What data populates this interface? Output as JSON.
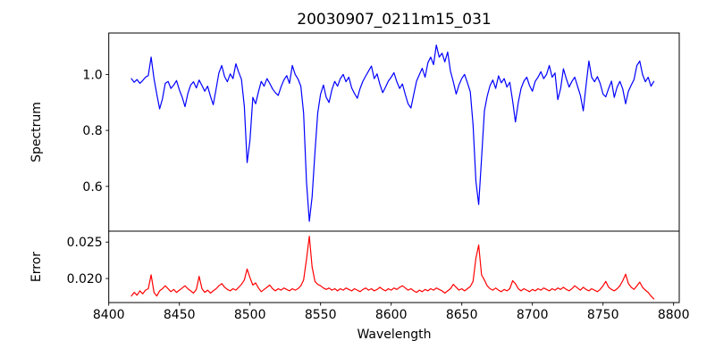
{
  "chart_data": {
    "type": "line",
    "title": "20030907_0211m15_031",
    "xlabel": "Wavelength",
    "xlim": [
      8400,
      8804
    ],
    "xticks": [
      8400,
      8450,
      8500,
      8550,
      8600,
      8650,
      8700,
      8750,
      8800
    ],
    "grid": false,
    "legend": "none",
    "panels": [
      {
        "ylabel": "Spectrum",
        "ylim": [
          0.44,
          1.148
        ],
        "yticks": [
          0.6,
          0.8,
          1.0
        ],
        "ytick_labels": [
          "0.6",
          "0.8",
          "1.0"
        ],
        "series": {
          "name": "spectrum",
          "color": "#0000ff",
          "x_start": 8416,
          "x_step": 2,
          "value_scale": 0.001,
          "values": [
            985,
            972,
            982,
            968,
            978,
            990,
            996,
            1062,
            985,
            930,
            877,
            912,
            968,
            975,
            950,
            962,
            978,
            945,
            918,
            885,
            932,
            962,
            974,
            952,
            980,
            960,
            940,
            958,
            922,
            892,
            948,
            1005,
            1032,
            992,
            974,
            1002,
            985,
            1038,
            1008,
            982,
            885,
            685,
            765,
            918,
            895,
            938,
            975,
            958,
            985,
            968,
            948,
            935,
            925,
            956,
            980,
            996,
            968,
            1032,
            1000,
            984,
            958,
            862,
            618,
            475,
            562,
            722,
            862,
            930,
            962,
            918,
            900,
            945,
            975,
            958,
            985,
            1000,
            974,
            990,
            952,
            932,
            915,
            950,
            976,
            995,
            1012,
            1030,
            985,
            1002,
            964,
            935,
            955,
            976,
            990,
            1006,
            974,
            950,
            966,
            928,
            895,
            880,
            930,
            976,
            1000,
            1022,
            990,
            1042,
            1062,
            1035,
            1105,
            1062,
            1076,
            1045,
            1080,
            1012,
            974,
            930,
            962,
            986,
            1000,
            970,
            938,
            820,
            618,
            535,
            700,
            870,
            922,
            960,
            980,
            950,
            995,
            970,
            985,
            955,
            972,
            905,
            830,
            900,
            950,
            976,
            990,
            960,
            940,
            975,
            990,
            1010,
            985,
            1000,
            1032,
            990,
            1005,
            910,
            950,
            1020,
            985,
            955,
            975,
            990,
            958,
            925,
            870,
            960,
            1048,
            990,
            974,
            992,
            968,
            930,
            920,
            950,
            976,
            918,
            955,
            975,
            948,
            895,
            940,
            962,
            982,
            1032,
            1048,
            1000,
            974,
            990,
            958,
            975
          ]
        }
      },
      {
        "ylabel": "Error",
        "ylim": [
          0.0167,
          0.0265
        ],
        "yticks": [
          0.02,
          0.025
        ],
        "ytick_labels": [
          "0.020",
          "0.025"
        ],
        "series": {
          "name": "error",
          "color": "#ff0000",
          "x_start": 8416,
          "x_step": 2,
          "value_scale": 0.0001,
          "values": [
            176,
            181,
            177,
            183,
            179,
            184,
            186,
            205,
            181,
            176,
            183,
            186,
            190,
            186,
            182,
            185,
            181,
            184,
            187,
            190,
            186,
            183,
            180,
            185,
            203,
            186,
            181,
            184,
            180,
            183,
            186,
            190,
            193,
            188,
            185,
            183,
            186,
            184,
            188,
            192,
            198,
            213,
            201,
            191,
            194,
            187,
            182,
            185,
            188,
            191,
            186,
            183,
            186,
            184,
            187,
            185,
            183,
            186,
            184,
            186,
            190,
            198,
            226,
            258,
            216,
            196,
            192,
            190,
            187,
            185,
            187,
            184,
            186,
            183,
            186,
            184,
            187,
            185,
            183,
            186,
            184,
            182,
            185,
            187,
            184,
            186,
            183,
            185,
            188,
            185,
            183,
            186,
            184,
            187,
            185,
            188,
            190,
            187,
            184,
            186,
            183,
            181,
            184,
            182,
            185,
            183,
            186,
            184,
            187,
            185,
            183,
            180,
            183,
            186,
            192,
            188,
            184,
            186,
            183,
            186,
            189,
            196,
            228,
            246,
            205,
            198,
            190,
            186,
            184,
            187,
            184,
            182,
            185,
            183,
            186,
            197,
            193,
            186,
            183,
            186,
            184,
            182,
            185,
            183,
            186,
            184,
            187,
            185,
            183,
            186,
            184,
            187,
            185,
            188,
            185,
            183,
            186,
            190,
            187,
            184,
            188,
            185,
            183,
            186,
            184,
            182,
            185,
            190,
            196,
            188,
            185,
            183,
            186,
            190,
            197,
            206,
            193,
            188,
            185,
            190,
            195,
            188,
            184,
            181,
            176,
            172
          ]
        }
      }
    ]
  }
}
